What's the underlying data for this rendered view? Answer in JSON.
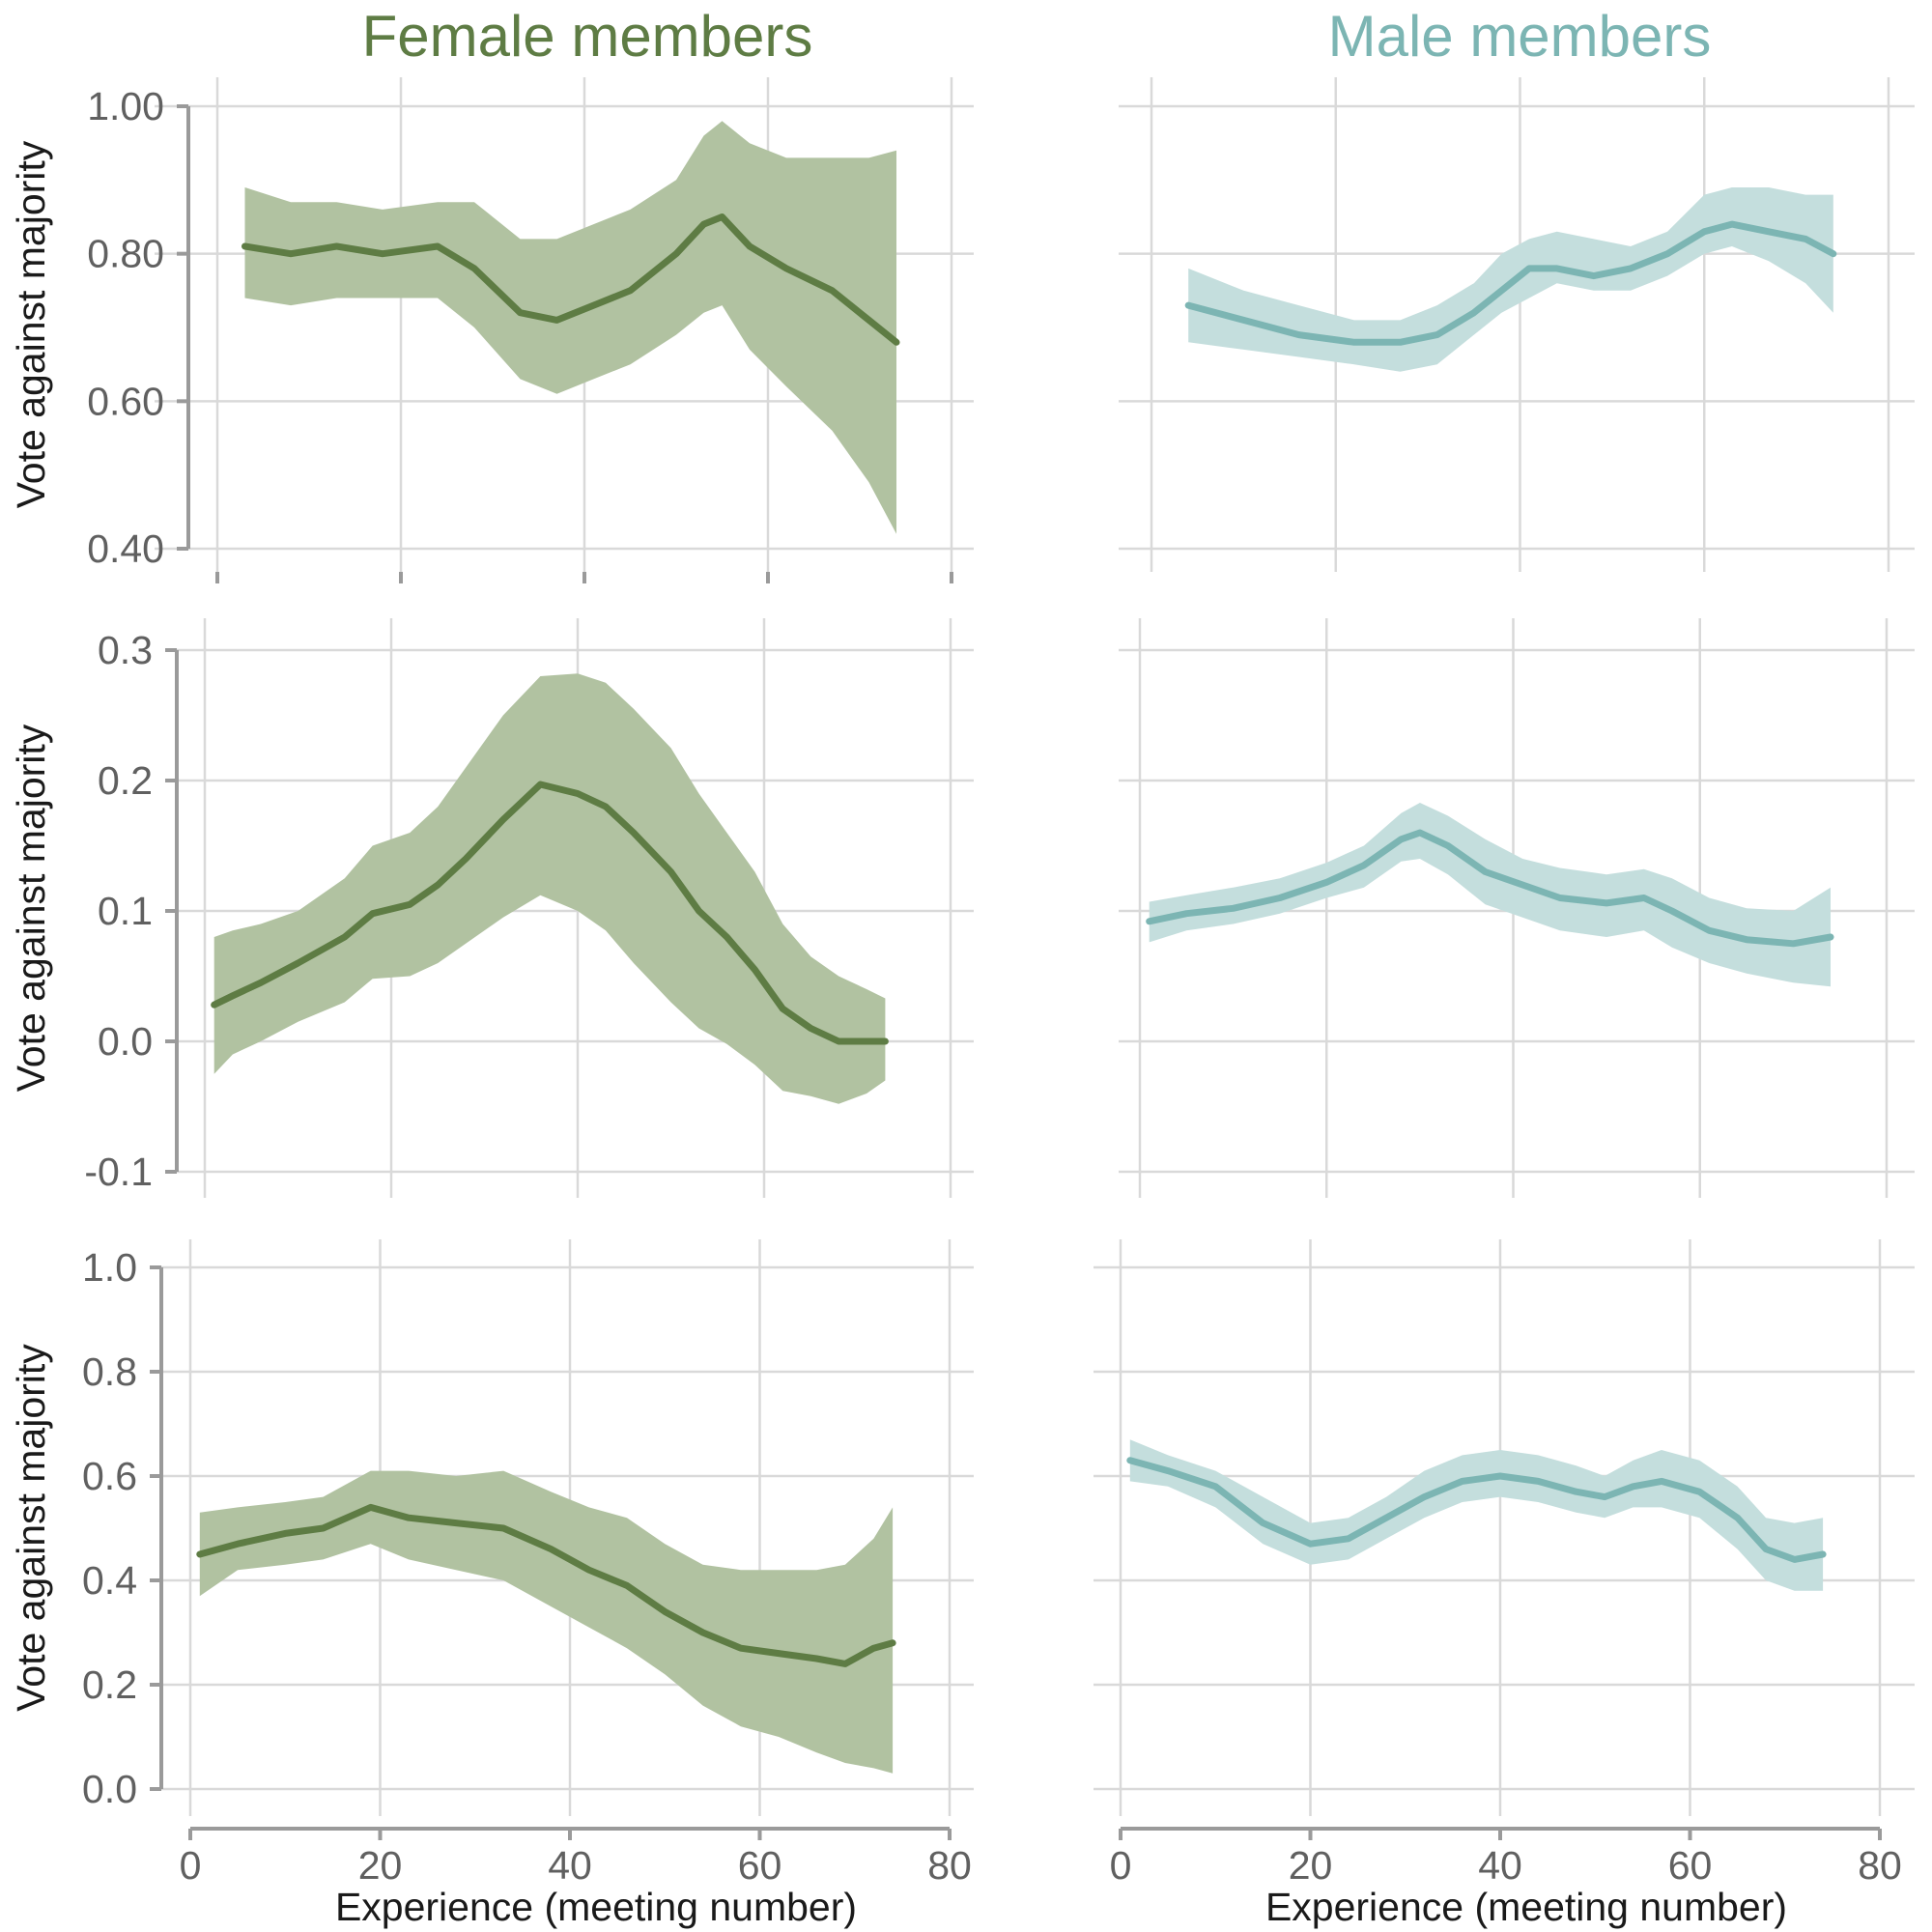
{
  "columns": [
    {
      "title": "Female members",
      "color": "#5e7c44",
      "band": "#b1c2a1"
    },
    {
      "title": "Male members",
      "color": "#7cb5b3",
      "band": "#c4dedd"
    }
  ],
  "x_label": "Experience (meeting number)",
  "y_label": "Vote against majority",
  "chart_data": [
    {
      "type": "line",
      "panel": "row1-female",
      "xlim": [
        0,
        80
      ],
      "ylim": [
        0.4,
        1.0
      ],
      "yticks": [
        "0.40",
        "0.60",
        "0.80",
        "1.00"
      ],
      "xticks": [
        "0",
        "20",
        "40",
        "60",
        "80"
      ],
      "series": [
        {
          "x": [
            3,
            8,
            13,
            18,
            24,
            28,
            33,
            37,
            41,
            45,
            50,
            53,
            55,
            58,
            62,
            67,
            71,
            74
          ],
          "y": [
            0.81,
            0.8,
            0.81,
            0.8,
            0.81,
            0.78,
            0.72,
            0.71,
            0.73,
            0.75,
            0.8,
            0.84,
            0.85,
            0.81,
            0.78,
            0.75,
            0.71,
            0.68
          ],
          "lower": [
            0.74,
            0.73,
            0.74,
            0.74,
            0.74,
            0.7,
            0.63,
            0.61,
            0.63,
            0.65,
            0.69,
            0.72,
            0.73,
            0.67,
            0.62,
            0.56,
            0.49,
            0.42
          ],
          "upper": [
            0.89,
            0.87,
            0.87,
            0.86,
            0.87,
            0.87,
            0.82,
            0.82,
            0.84,
            0.86,
            0.9,
            0.96,
            0.98,
            0.95,
            0.93,
            0.93,
            0.93,
            0.94
          ]
        }
      ]
    },
    {
      "type": "line",
      "panel": "row1-male",
      "xlim": [
        0,
        80
      ],
      "ylim": [
        0.4,
        1.0
      ],
      "xticks": [],
      "series": [
        {
          "x": [
            4,
            10,
            16,
            22,
            27,
            31,
            35,
            38,
            41,
            44,
            48,
            52,
            56,
            60,
            63,
            67,
            71,
            74
          ],
          "y": [
            0.73,
            0.71,
            0.69,
            0.68,
            0.68,
            0.69,
            0.72,
            0.75,
            0.78,
            0.78,
            0.77,
            0.78,
            0.8,
            0.83,
            0.84,
            0.83,
            0.82,
            0.8
          ],
          "lower": [
            0.68,
            0.67,
            0.66,
            0.65,
            0.64,
            0.65,
            0.69,
            0.72,
            0.74,
            0.76,
            0.75,
            0.75,
            0.77,
            0.8,
            0.81,
            0.79,
            0.76,
            0.72
          ],
          "upper": [
            0.78,
            0.75,
            0.73,
            0.71,
            0.71,
            0.73,
            0.76,
            0.8,
            0.82,
            0.83,
            0.82,
            0.81,
            0.83,
            0.88,
            0.89,
            0.89,
            0.88,
            0.88
          ]
        }
      ]
    },
    {
      "type": "line",
      "panel": "row2-female",
      "xlim": [
        0,
        80
      ],
      "ylim": [
        -0.1,
        0.3
      ],
      "yticks": [
        "-0.1",
        "0.0",
        "0.1",
        "0.2",
        "0.3"
      ],
      "xticks": [],
      "series": [
        {
          "x": [
            1,
            3,
            6,
            10,
            15,
            18,
            22,
            25,
            28,
            32,
            36,
            40,
            43,
            46,
            50,
            53,
            56,
            59,
            62,
            65,
            68,
            71,
            73
          ],
          "y": [
            0.028,
            0.035,
            0.045,
            0.06,
            0.08,
            0.098,
            0.105,
            0.12,
            0.14,
            0.17,
            0.197,
            0.19,
            0.18,
            0.16,
            0.13,
            0.1,
            0.08,
            0.055,
            0.025,
            0.01,
            0.0,
            0.0,
            0.0
          ],
          "lower": [
            -0.025,
            -0.01,
            0.0,
            0.015,
            0.03,
            0.048,
            0.05,
            0.06,
            0.075,
            0.095,
            0.112,
            0.1,
            0.085,
            0.06,
            0.03,
            0.01,
            -0.002,
            -0.018,
            -0.038,
            -0.042,
            -0.048,
            -0.04,
            -0.03
          ],
          "upper": [
            0.08,
            0.085,
            0.09,
            0.1,
            0.125,
            0.15,
            0.16,
            0.18,
            0.21,
            0.25,
            0.28,
            0.282,
            0.275,
            0.255,
            0.225,
            0.19,
            0.16,
            0.13,
            0.09,
            0.065,
            0.05,
            0.04,
            0.033
          ]
        }
      ]
    },
    {
      "type": "line",
      "panel": "row2-male",
      "xlim": [
        0,
        80
      ],
      "ylim": [
        -0.1,
        0.3
      ],
      "xticks": [],
      "series": [
        {
          "x": [
            1,
            5,
            10,
            15,
            20,
            24,
            28,
            30,
            33,
            37,
            41,
            45,
            50,
            54,
            57,
            61,
            65,
            70,
            74
          ],
          "y": [
            0.092,
            0.098,
            0.102,
            0.11,
            0.122,
            0.135,
            0.155,
            0.16,
            0.15,
            0.13,
            0.12,
            0.11,
            0.106,
            0.11,
            0.1,
            0.085,
            0.078,
            0.075,
            0.08
          ],
          "lower": [
            0.076,
            0.085,
            0.09,
            0.098,
            0.11,
            0.118,
            0.138,
            0.14,
            0.128,
            0.105,
            0.095,
            0.085,
            0.08,
            0.085,
            0.072,
            0.06,
            0.052,
            0.045,
            0.042
          ],
          "upper": [
            0.107,
            0.112,
            0.118,
            0.125,
            0.137,
            0.15,
            0.175,
            0.183,
            0.173,
            0.155,
            0.14,
            0.133,
            0.128,
            0.132,
            0.125,
            0.11,
            0.102,
            0.1,
            0.118
          ]
        }
      ]
    },
    {
      "type": "line",
      "panel": "row3-female",
      "xlim": [
        0,
        80
      ],
      "ylim": [
        0.0,
        1.0
      ],
      "yticks": [
        "0.0",
        "0.2",
        "0.4",
        "0.6",
        "0.8",
        "1.0"
      ],
      "xticks": [
        "0",
        "20",
        "40",
        "60",
        "80"
      ],
      "series": [
        {
          "x": [
            1,
            5,
            10,
            14,
            19,
            23,
            28,
            33,
            38,
            42,
            46,
            50,
            54,
            58,
            62,
            66,
            69,
            72,
            74
          ],
          "y": [
            0.45,
            0.47,
            0.49,
            0.5,
            0.54,
            0.52,
            0.51,
            0.5,
            0.46,
            0.42,
            0.39,
            0.34,
            0.3,
            0.27,
            0.26,
            0.25,
            0.24,
            0.27,
            0.28
          ],
          "lower": [
            0.37,
            0.42,
            0.43,
            0.44,
            0.47,
            0.44,
            0.42,
            0.4,
            0.35,
            0.31,
            0.27,
            0.22,
            0.16,
            0.12,
            0.1,
            0.07,
            0.05,
            0.04,
            0.03
          ],
          "upper": [
            0.53,
            0.54,
            0.55,
            0.56,
            0.61,
            0.61,
            0.6,
            0.61,
            0.57,
            0.54,
            0.52,
            0.47,
            0.43,
            0.42,
            0.42,
            0.42,
            0.43,
            0.48,
            0.54
          ]
        }
      ]
    },
    {
      "type": "line",
      "panel": "row3-male",
      "xlim": [
        0,
        80
      ],
      "ylim": [
        0.0,
        1.0
      ],
      "xticks": [
        "0",
        "20",
        "40",
        "60",
        "80"
      ],
      "series": [
        {
          "x": [
            1,
            5,
            10,
            15,
            20,
            24,
            28,
            32,
            36,
            40,
            44,
            48,
            51,
            54,
            57,
            61,
            65,
            68,
            71,
            74
          ],
          "y": [
            0.63,
            0.61,
            0.58,
            0.51,
            0.47,
            0.48,
            0.52,
            0.56,
            0.59,
            0.6,
            0.59,
            0.57,
            0.56,
            0.58,
            0.59,
            0.57,
            0.52,
            0.46,
            0.44,
            0.45
          ],
          "lower": [
            0.59,
            0.58,
            0.54,
            0.47,
            0.43,
            0.44,
            0.48,
            0.52,
            0.55,
            0.56,
            0.55,
            0.53,
            0.52,
            0.54,
            0.54,
            0.52,
            0.46,
            0.4,
            0.38,
            0.38
          ],
          "upper": [
            0.67,
            0.64,
            0.61,
            0.56,
            0.51,
            0.52,
            0.56,
            0.61,
            0.64,
            0.65,
            0.64,
            0.62,
            0.6,
            0.63,
            0.65,
            0.63,
            0.58,
            0.52,
            0.51,
            0.52
          ]
        }
      ]
    }
  ]
}
